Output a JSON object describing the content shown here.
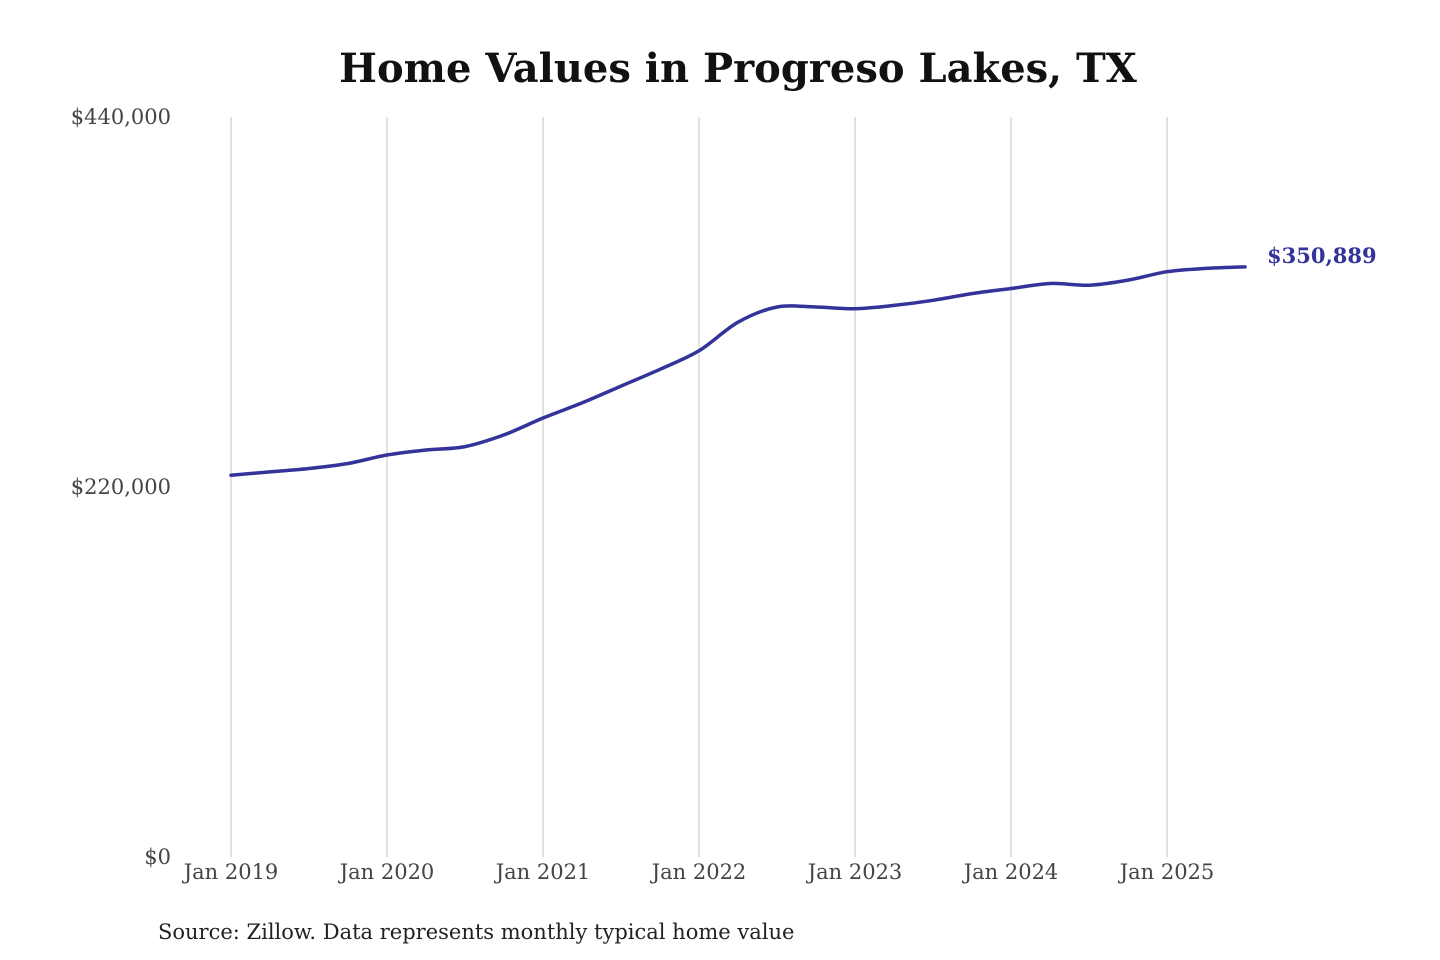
{
  "chart_data": {
    "type": "line",
    "title": "Home Values in Progreso Lakes, TX",
    "xlabel": "",
    "ylabel": "",
    "ylim": [
      0,
      440000
    ],
    "y_ticks": [
      {
        "value": 0,
        "label": "$0"
      },
      {
        "value": 220000,
        "label": "$220,000"
      },
      {
        "value": 440000,
        "label": "$440,000"
      }
    ],
    "x_ticks": [
      {
        "value": "2019-01",
        "label": "Jan 2019"
      },
      {
        "value": "2020-01",
        "label": "Jan 2020"
      },
      {
        "value": "2021-01",
        "label": "Jan 2021"
      },
      {
        "value": "2022-01",
        "label": "Jan 2022"
      },
      {
        "value": "2023-01",
        "label": "Jan 2023"
      },
      {
        "value": "2024-01",
        "label": "Jan 2024"
      },
      {
        "value": "2025-01",
        "label": "Jan 2025"
      }
    ],
    "x_range": [
      "2019-01",
      "2025-07"
    ],
    "grid": "vertical gridlines at year ticks",
    "legend": "none",
    "line_color": "#33339a",
    "end_label": "$350,889",
    "series": [
      {
        "x": [
          "2019-01",
          "2019-04",
          "2019-07",
          "2019-10",
          "2020-01",
          "2020-04",
          "2020-07",
          "2020-10",
          "2021-01",
          "2021-04",
          "2021-07",
          "2021-10",
          "2022-01",
          "2022-04",
          "2022-07",
          "2022-10",
          "2023-01",
          "2023-04",
          "2023-07",
          "2023-10",
          "2024-01",
          "2024-04",
          "2024-07",
          "2024-10",
          "2025-01",
          "2025-04",
          "2025-07"
        ],
        "values": [
          227000,
          229000,
          231000,
          234000,
          239000,
          242000,
          244000,
          251000,
          261000,
          270000,
          280000,
          290000,
          301000,
          318000,
          327000,
          327000,
          326000,
          328000,
          331000,
          335000,
          338000,
          341000,
          340000,
          343000,
          348000,
          350000,
          350889
        ]
      }
    ]
  },
  "footer": {
    "source": "Source: Zillow. Data represents monthly typical home value"
  }
}
